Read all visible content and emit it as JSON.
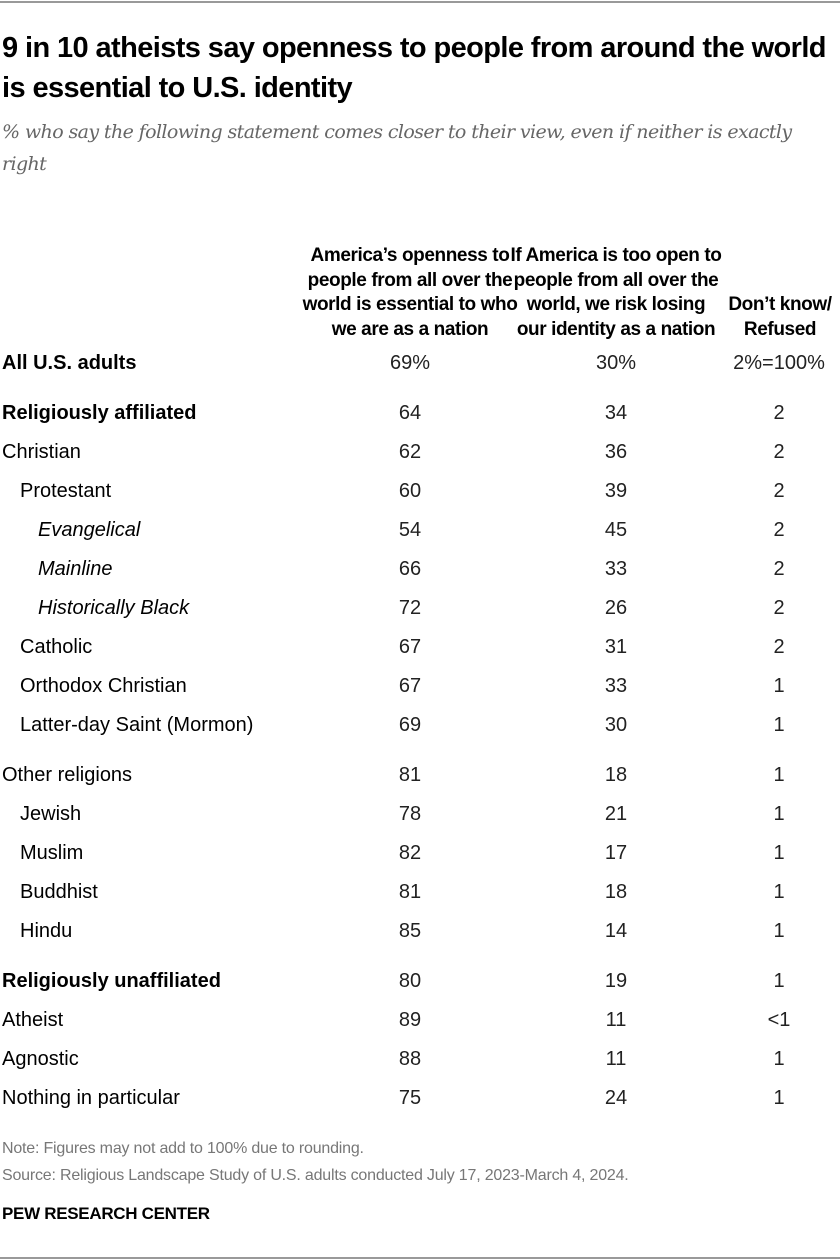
{
  "title": "9 in 10 atheists say openness to people from around the world is essential to U.S. identity",
  "subtitle": "% who say the following statement comes closer to their view, even if neither is exactly right",
  "chart_data": {
    "type": "table",
    "columns": [
      "America’s openness to people from all over the world is essential to who we are as a nation",
      "If America is too open to people from all over the world, we risk losing our identity as a nation",
      "Don’t know/ Refused"
    ],
    "groups": [
      {
        "rows": [
          {
            "label": "All U.S. adults",
            "level": 0,
            "bold": true,
            "values": [
              "69%",
              "30%",
              "2%=100%"
            ]
          }
        ]
      },
      {
        "rows": [
          {
            "label": "Religiously affiliated",
            "level": 0,
            "bold": true,
            "values": [
              "64",
              "34",
              "2"
            ]
          },
          {
            "label": "Christian",
            "level": 0,
            "bold": false,
            "values": [
              "62",
              "36",
              "2"
            ]
          },
          {
            "label": "Protestant",
            "level": 1,
            "bold": false,
            "values": [
              "60",
              "39",
              "2"
            ]
          },
          {
            "label": "Evangelical",
            "level": 2,
            "bold": false,
            "values": [
              "54",
              "45",
              "2"
            ]
          },
          {
            "label": "Mainline",
            "level": 2,
            "bold": false,
            "values": [
              "66",
              "33",
              "2"
            ]
          },
          {
            "label": "Historically Black",
            "level": 2,
            "bold": false,
            "values": [
              "72",
              "26",
              "2"
            ]
          },
          {
            "label": "Catholic",
            "level": 1,
            "bold": false,
            "values": [
              "67",
              "31",
              "2"
            ]
          },
          {
            "label": "Orthodox Christian",
            "level": 1,
            "bold": false,
            "values": [
              "67",
              "33",
              "1"
            ]
          },
          {
            "label": "Latter-day Saint (Mormon)",
            "level": 1,
            "bold": false,
            "values": [
              "69",
              "30",
              "1"
            ]
          }
        ]
      },
      {
        "rows": [
          {
            "label": "Other religions",
            "level": 0,
            "bold": false,
            "values": [
              "81",
              "18",
              "1"
            ]
          },
          {
            "label": "Jewish",
            "level": 1,
            "bold": false,
            "values": [
              "78",
              "21",
              "1"
            ]
          },
          {
            "label": "Muslim",
            "level": 1,
            "bold": false,
            "values": [
              "82",
              "17",
              "1"
            ]
          },
          {
            "label": "Buddhist",
            "level": 1,
            "bold": false,
            "values": [
              "81",
              "18",
              "1"
            ]
          },
          {
            "label": "Hindu",
            "level": 1,
            "bold": false,
            "values": [
              "85",
              "14",
              "1"
            ]
          }
        ]
      },
      {
        "rows": [
          {
            "label": "Religiously unaffiliated",
            "level": 0,
            "bold": true,
            "values": [
              "80",
              "19",
              "1"
            ]
          },
          {
            "label": "Atheist",
            "level": 0,
            "bold": false,
            "values": [
              "89",
              "11",
              "<1"
            ]
          },
          {
            "label": "Agnostic",
            "level": 0,
            "bold": false,
            "values": [
              "88",
              "11",
              "1"
            ]
          },
          {
            "label": "Nothing in particular",
            "level": 0,
            "bold": false,
            "values": [
              "75",
              "24",
              "1"
            ]
          }
        ]
      }
    ]
  },
  "note": "Note: Figures may not add to 100% due to rounding.",
  "source": "Source: Religious Landscape Study of U.S. adults conducted July 17, 2023-March 4, 2024.",
  "brand": "PEW RESEARCH CENTER"
}
